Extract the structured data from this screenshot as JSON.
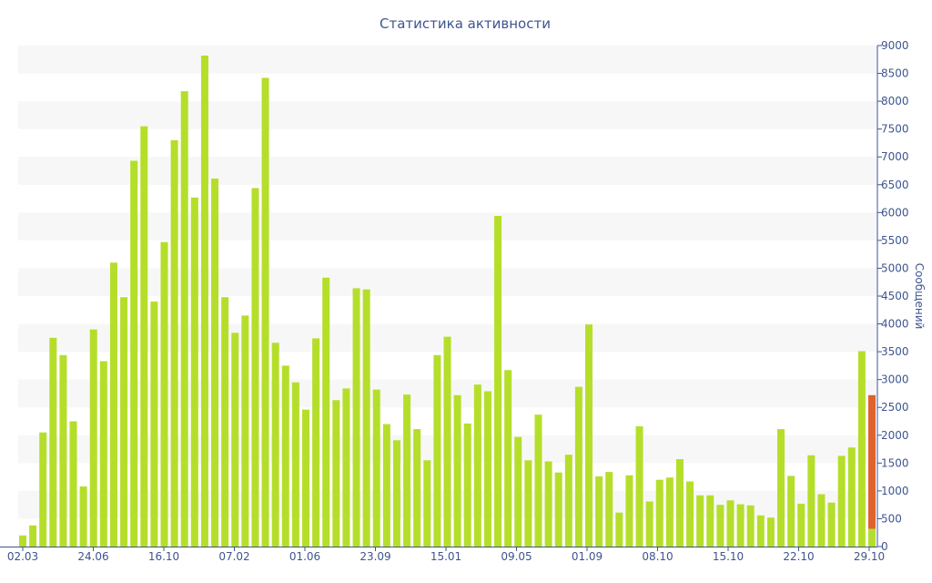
{
  "chart_data": {
    "type": "bar",
    "title": "Статистика активности",
    "ylabel": "Сообщений",
    "xlabel": "",
    "ylim": [
      0,
      9000
    ],
    "y_ticks": [
      0,
      500,
      1000,
      1500,
      2000,
      2500,
      3000,
      3500,
      4000,
      4500,
      5000,
      5500,
      6000,
      6500,
      7000,
      7500,
      8000,
      8500,
      9000
    ],
    "x_tick_labels": [
      "02.03",
      "24.06",
      "16.10",
      "07.02",
      "01.06",
      "23.09",
      "15.01",
      "09.05",
      "01.09",
      "08.10",
      "15.10",
      "22.10",
      "29.10"
    ],
    "grid": "alternating horizontal bands",
    "y_axis_side": "right",
    "colors": {
      "bar": "#b5de2b",
      "highlight": "#e0622c",
      "band": "#f7f7f7",
      "axis": "#3e5590"
    },
    "values": [
      200,
      380,
      2050,
      3750,
      3440,
      2250,
      1080,
      3900,
      3330,
      5100,
      4480,
      6930,
      7550,
      4400,
      5470,
      7300,
      8180,
      6270,
      8820,
      6610,
      4480,
      3840,
      4150,
      6440,
      8420,
      3660,
      3250,
      2950,
      2460,
      3740,
      4830,
      2630,
      2840,
      4640,
      4620,
      2820,
      2200,
      1910,
      2730,
      2110,
      1550,
      3440,
      3770,
      2720,
      2210,
      2910,
      2790,
      5940,
      3170,
      1970,
      1550,
      2370,
      1530,
      1330,
      1650,
      2870,
      3990,
      1260,
      1340,
      610,
      1280,
      2160,
      810,
      1200,
      1240,
      1570,
      1170,
      920,
      920,
      750,
      830,
      760,
      740,
      560,
      520,
      2110,
      1270,
      770,
      1640,
      940,
      790,
      1630,
      1780,
      3510,
      320
    ],
    "highlight_value": 2720
  }
}
